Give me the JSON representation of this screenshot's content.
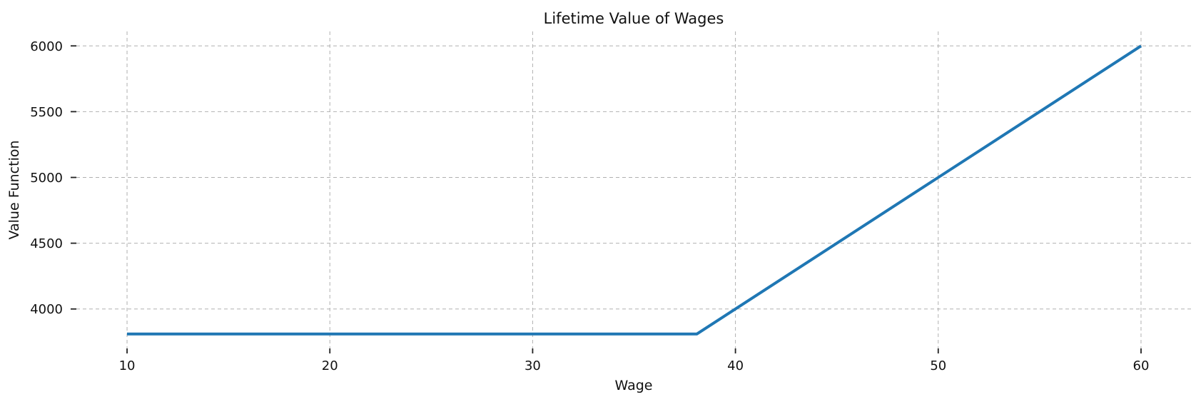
{
  "chart_data": {
    "type": "line",
    "title": "Lifetime Value of Wages",
    "xlabel": "Wage",
    "ylabel": "Value Function",
    "x_ticks": [
      10,
      20,
      30,
      40,
      50,
      60
    ],
    "y_ticks": [
      4000,
      4500,
      5000,
      5500,
      6000
    ],
    "xlim": [
      7.5,
      62.5
    ],
    "ylim": [
      3700,
      6110
    ],
    "grid": "dashed-both-axes",
    "legend": "none",
    "series": [
      {
        "name": "value-function",
        "color": "#1f77b4",
        "points": [
          [
            10,
            3810
          ],
          [
            38.1,
            3810
          ],
          [
            40,
            4000
          ],
          [
            50,
            5000
          ],
          [
            60,
            6000
          ]
        ]
      }
    ],
    "flat_segment_value": 3810,
    "kink_wage": 38.1
  },
  "colors": {
    "line": "#1f77b4",
    "grid": "#b0b0b0",
    "tick_mark": "#222222",
    "text": "#111111",
    "background": "#ffffff"
  }
}
